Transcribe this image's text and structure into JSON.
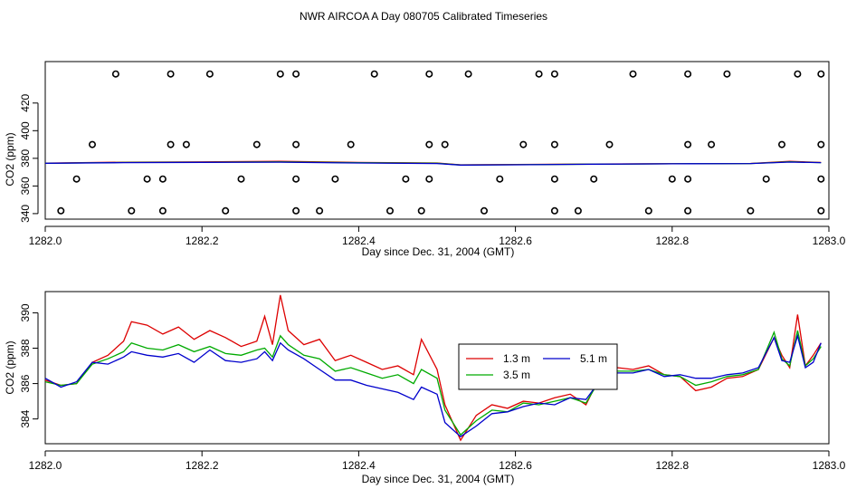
{
  "title": "NWR AIRCOA A  Day 080705  Calibrated Timeseries",
  "chart_data": [
    {
      "type": "scatter",
      "xlabel": "Day since Dec. 31, 2004 (GMT)",
      "ylabel": "CO2 (ppm)",
      "xlim": [
        1282.0,
        1283.0
      ],
      "ylim": [
        336,
        450
      ],
      "xticks": [
        "1282.0",
        "1282.2",
        "1282.4",
        "1282.6",
        "1282.8",
        "1283.0"
      ],
      "xtick_values": [
        1282.0,
        1282.2,
        1282.4,
        1282.6,
        1282.8,
        1283.0
      ],
      "yticks": [
        "340",
        "360",
        "380",
        "400",
        "420"
      ],
      "ytick_values": [
        340,
        360,
        380,
        400,
        420
      ],
      "colors": {
        "h1": "#dd0000",
        "h2": "#00aa00",
        "h3": "#0000cc",
        "points": "#000000"
      },
      "points": [
        {
          "x": 1282.09,
          "y": 441
        },
        {
          "x": 1282.16,
          "y": 441
        },
        {
          "x": 1282.21,
          "y": 441
        },
        {
          "x": 1282.3,
          "y": 441
        },
        {
          "x": 1282.32,
          "y": 441
        },
        {
          "x": 1282.42,
          "y": 441
        },
        {
          "x": 1282.49,
          "y": 441
        },
        {
          "x": 1282.54,
          "y": 441
        },
        {
          "x": 1282.63,
          "y": 441
        },
        {
          "x": 1282.65,
          "y": 441
        },
        {
          "x": 1282.75,
          "y": 441
        },
        {
          "x": 1282.82,
          "y": 441
        },
        {
          "x": 1282.87,
          "y": 441
        },
        {
          "x": 1282.96,
          "y": 441
        },
        {
          "x": 1282.99,
          "y": 441
        },
        {
          "x": 1282.06,
          "y": 390
        },
        {
          "x": 1282.16,
          "y": 390
        },
        {
          "x": 1282.18,
          "y": 390
        },
        {
          "x": 1282.27,
          "y": 390
        },
        {
          "x": 1282.32,
          "y": 390
        },
        {
          "x": 1282.39,
          "y": 390
        },
        {
          "x": 1282.49,
          "y": 390
        },
        {
          "x": 1282.51,
          "y": 390
        },
        {
          "x": 1282.61,
          "y": 390
        },
        {
          "x": 1282.65,
          "y": 390
        },
        {
          "x": 1282.72,
          "y": 390
        },
        {
          "x": 1282.82,
          "y": 390
        },
        {
          "x": 1282.85,
          "y": 390
        },
        {
          "x": 1282.94,
          "y": 390
        },
        {
          "x": 1282.99,
          "y": 390
        },
        {
          "x": 1282.04,
          "y": 365
        },
        {
          "x": 1282.13,
          "y": 365
        },
        {
          "x": 1282.15,
          "y": 365
        },
        {
          "x": 1282.25,
          "y": 365
        },
        {
          "x": 1282.32,
          "y": 365
        },
        {
          "x": 1282.37,
          "y": 365
        },
        {
          "x": 1282.46,
          "y": 365
        },
        {
          "x": 1282.49,
          "y": 365
        },
        {
          "x": 1282.58,
          "y": 365
        },
        {
          "x": 1282.65,
          "y": 365
        },
        {
          "x": 1282.7,
          "y": 365
        },
        {
          "x": 1282.8,
          "y": 365
        },
        {
          "x": 1282.82,
          "y": 365
        },
        {
          "x": 1282.92,
          "y": 365
        },
        {
          "x": 1282.99,
          "y": 365
        },
        {
          "x": 1282.02,
          "y": 342
        },
        {
          "x": 1282.11,
          "y": 342
        },
        {
          "x": 1282.15,
          "y": 342
        },
        {
          "x": 1282.23,
          "y": 342
        },
        {
          "x": 1282.32,
          "y": 342
        },
        {
          "x": 1282.35,
          "y": 342
        },
        {
          "x": 1282.44,
          "y": 342
        },
        {
          "x": 1282.48,
          "y": 342
        },
        {
          "x": 1282.56,
          "y": 342
        },
        {
          "x": 1282.65,
          "y": 342
        },
        {
          "x": 1282.68,
          "y": 342
        },
        {
          "x": 1282.77,
          "y": 342
        },
        {
          "x": 1282.82,
          "y": 342
        },
        {
          "x": 1282.9,
          "y": 342
        },
        {
          "x": 1282.99,
          "y": 342
        }
      ],
      "series": [
        {
          "name": "1.3 m",
          "x": [
            1282.0,
            1282.1,
            1282.2,
            1282.3,
            1282.4,
            1282.5,
            1282.53,
            1282.6,
            1282.7,
            1282.8,
            1282.9,
            1282.95,
            1282.99
          ],
          "values": [
            376.5,
            377.2,
            377.4,
            377.8,
            377.0,
            376.6,
            375.3,
            375.5,
            375.9,
            376.1,
            376.3,
            377.8,
            377.0
          ]
        },
        {
          "name": "3.5 m",
          "x": [
            1282.0,
            1282.1,
            1282.2,
            1282.3,
            1282.4,
            1282.5,
            1282.53,
            1282.6,
            1282.7,
            1282.8,
            1282.9,
            1282.95,
            1282.99
          ],
          "values": [
            376.4,
            377.0,
            377.2,
            377.4,
            376.8,
            376.4,
            375.2,
            375.4,
            375.8,
            376.0,
            376.2,
            377.5,
            376.9
          ]
        },
        {
          "name": "5.1 m",
          "x": [
            1282.0,
            1282.1,
            1282.2,
            1282.3,
            1282.4,
            1282.5,
            1282.53,
            1282.6,
            1282.7,
            1282.8,
            1282.9,
            1282.95,
            1282.99
          ],
          "values": [
            376.4,
            376.9,
            377.1,
            377.2,
            376.6,
            376.2,
            375.1,
            375.3,
            375.8,
            376.0,
            376.2,
            377.3,
            376.9
          ]
        }
      ]
    },
    {
      "type": "line",
      "xlabel": "Day since Dec. 31, 2004 (GMT)",
      "ylabel": "CO2 (ppm)",
      "xlim": [
        1282.0,
        1283.0
      ],
      "ylim": [
        382.6,
        391.2
      ],
      "xticks": [
        "1282.0",
        "1282.2",
        "1282.4",
        "1282.6",
        "1282.8",
        "1283.0"
      ],
      "xtick_values": [
        1282.0,
        1282.2,
        1282.4,
        1282.6,
        1282.8,
        1283.0
      ],
      "yticks": [
        "384",
        "386",
        "388",
        "390"
      ],
      "ytick_values": [
        384,
        386,
        388,
        390
      ],
      "legend": "center-right",
      "series": [
        {
          "name": "1.3 m",
          "color": "#dd0000",
          "x": [
            1282.0,
            1282.02,
            1282.04,
            1282.06,
            1282.08,
            1282.1,
            1282.11,
            1282.13,
            1282.15,
            1282.17,
            1282.19,
            1282.21,
            1282.23,
            1282.25,
            1282.27,
            1282.28,
            1282.29,
            1282.3,
            1282.31,
            1282.33,
            1282.35,
            1282.37,
            1282.39,
            1282.41,
            1282.43,
            1282.45,
            1282.47,
            1282.48,
            1282.5,
            1282.51,
            1282.53,
            1282.55,
            1282.57,
            1282.59,
            1282.61,
            1282.63,
            1282.65,
            1282.67,
            1282.69,
            1282.71,
            1282.73,
            1282.75,
            1282.77,
            1282.79,
            1282.81,
            1282.83,
            1282.85,
            1282.87,
            1282.89,
            1282.91,
            1282.93,
            1282.94,
            1282.95,
            1282.96,
            1282.97,
            1282.98,
            1282.99
          ],
          "values": [
            386.2,
            385.9,
            386.0,
            387.2,
            387.6,
            388.4,
            389.5,
            389.3,
            388.8,
            389.2,
            388.5,
            389.0,
            388.6,
            388.1,
            388.4,
            389.8,
            388.2,
            391.0,
            389.0,
            388.2,
            388.5,
            387.3,
            387.6,
            387.2,
            386.8,
            387.0,
            386.5,
            388.5,
            386.8,
            384.8,
            382.8,
            384.2,
            384.8,
            384.6,
            385.0,
            384.9,
            385.2,
            385.4,
            384.8,
            386.6,
            386.9,
            386.8,
            387.0,
            386.5,
            386.4,
            385.6,
            385.8,
            386.3,
            386.4,
            386.8,
            388.6,
            387.6,
            386.9,
            389.9,
            387.0,
            387.6,
            388.3
          ]
        },
        {
          "name": "3.5 m",
          "color": "#00aa00",
          "x": [
            1282.0,
            1282.02,
            1282.04,
            1282.06,
            1282.08,
            1282.1,
            1282.11,
            1282.13,
            1282.15,
            1282.17,
            1282.19,
            1282.21,
            1282.23,
            1282.25,
            1282.27,
            1282.28,
            1282.29,
            1282.3,
            1282.31,
            1282.33,
            1282.35,
            1282.37,
            1282.39,
            1282.41,
            1282.43,
            1282.45,
            1282.47,
            1282.48,
            1282.5,
            1282.51,
            1282.53,
            1282.55,
            1282.57,
            1282.59,
            1282.61,
            1282.63,
            1282.65,
            1282.67,
            1282.69,
            1282.71,
            1282.73,
            1282.75,
            1282.77,
            1282.79,
            1282.81,
            1282.83,
            1282.85,
            1282.87,
            1282.89,
            1282.91,
            1282.93,
            1282.94,
            1282.95,
            1282.96,
            1282.97,
            1282.98,
            1282.99
          ],
          "values": [
            386.1,
            385.9,
            386.0,
            387.1,
            387.4,
            387.8,
            388.3,
            388.0,
            387.9,
            388.2,
            387.8,
            388.1,
            387.7,
            387.6,
            387.9,
            388.0,
            387.5,
            388.7,
            388.2,
            387.6,
            387.4,
            386.7,
            386.9,
            386.6,
            386.3,
            386.5,
            386.0,
            386.8,
            386.3,
            384.5,
            383.1,
            383.9,
            384.5,
            384.4,
            384.9,
            384.8,
            385.0,
            385.2,
            384.9,
            386.4,
            386.7,
            386.7,
            386.8,
            386.5,
            386.4,
            385.9,
            386.1,
            386.4,
            386.5,
            386.8,
            388.9,
            387.4,
            387.0,
            389.0,
            387.0,
            387.4,
            388.1
          ]
        },
        {
          "name": "5.1 m",
          "color": "#0000cc",
          "x": [
            1282.0,
            1282.02,
            1282.04,
            1282.06,
            1282.08,
            1282.1,
            1282.11,
            1282.13,
            1282.15,
            1282.17,
            1282.19,
            1282.21,
            1282.23,
            1282.25,
            1282.27,
            1282.28,
            1282.29,
            1282.3,
            1282.31,
            1282.33,
            1282.35,
            1282.37,
            1282.39,
            1282.41,
            1282.43,
            1282.45,
            1282.47,
            1282.48,
            1282.5,
            1282.51,
            1282.53,
            1282.55,
            1282.57,
            1282.59,
            1282.61,
            1282.63,
            1282.65,
            1282.67,
            1282.69,
            1282.71,
            1282.73,
            1282.75,
            1282.77,
            1282.79,
            1282.81,
            1282.83,
            1282.85,
            1282.87,
            1282.89,
            1282.91,
            1282.93,
            1282.94,
            1282.95,
            1282.96,
            1282.97,
            1282.98,
            1282.99
          ],
          "values": [
            386.3,
            385.8,
            386.1,
            387.2,
            387.1,
            387.5,
            387.8,
            387.6,
            387.5,
            387.7,
            387.2,
            387.9,
            387.3,
            387.2,
            387.4,
            387.8,
            387.3,
            388.3,
            387.9,
            387.4,
            386.8,
            386.2,
            386.2,
            385.9,
            385.7,
            385.5,
            385.1,
            385.8,
            385.4,
            383.8,
            383.0,
            383.6,
            384.3,
            384.4,
            384.7,
            384.9,
            384.8,
            385.2,
            385.1,
            386.3,
            386.6,
            386.6,
            386.8,
            386.4,
            386.5,
            386.3,
            386.3,
            386.5,
            386.6,
            386.9,
            388.6,
            387.3,
            387.2,
            388.7,
            386.9,
            387.2,
            388.3
          ]
        }
      ]
    }
  ]
}
